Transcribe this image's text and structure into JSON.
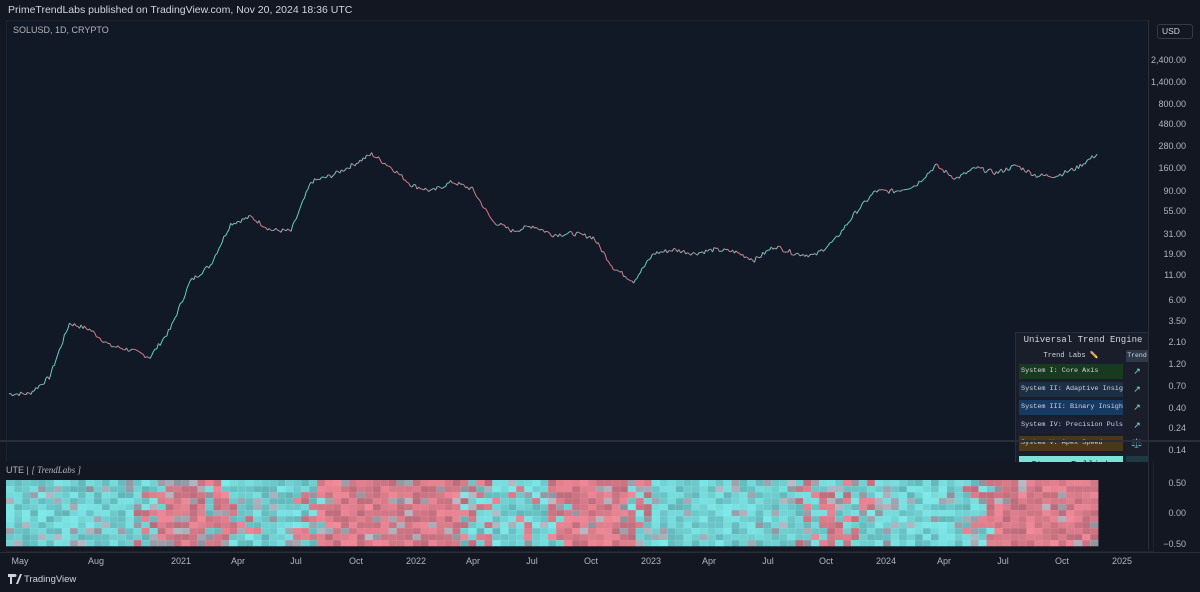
{
  "header": {
    "text": "PrimeTrendLabs published on TradingView.com, Nov 20, 2024 18:36 UTC"
  },
  "symbol": {
    "info": "SOLUSD, 1D, CRYPTO"
  },
  "price_axis": {
    "currency": "USD",
    "ticks": [
      "2,400.00",
      "1,400.00",
      "800.00",
      "480.00",
      "280.00",
      "160.00",
      "90.00",
      "55.00",
      "31.00",
      "19.00",
      "11.00",
      "6.00",
      "3.50",
      "2.10",
      "1.20",
      "0.70",
      "0.40",
      "0.24",
      "0.14"
    ]
  },
  "indicator": {
    "name": "UTE",
    "brand": "[ TrendLabs ]",
    "ticks": [
      "0.50",
      "0.00",
      "−0.50"
    ],
    "colors": {
      "bull": "#7fe9e9",
      "bear": "#f18a99",
      "neutral": "#b7bcc6"
    }
  },
  "time_axis": {
    "ticks": [
      "May",
      "Aug",
      "2021",
      "Apr",
      "Jul",
      "Oct",
      "2022",
      "Apr",
      "Jul",
      "Oct",
      "2023",
      "Apr",
      "Jul",
      "Oct",
      "2024",
      "Apr",
      "Jul",
      "Oct",
      "2025"
    ]
  },
  "footer": {
    "label": "TradingView"
  },
  "ute_table": {
    "title": "Universal Trend Engine",
    "subhead": "Trend Labs ✏️",
    "trend_header": "Trend",
    "systems": [
      {
        "label": "System I: Core Axis",
        "arrow": "↗",
        "color": "#183b1f"
      },
      {
        "label": "System II: Adaptive Insight",
        "arrow": "↗",
        "color": "#1b2f45"
      },
      {
        "label": "System III: Binary Insight",
        "arrow": "↗",
        "color": "#173a63"
      },
      {
        "label": "System IV: Precision Pulse",
        "arrow": "↗",
        "color": "#1b1f33"
      },
      {
        "label": "System V: Apex Speed",
        "arrow": "⚖️",
        "color": "#4a3816"
      }
    ],
    "summary": "Strong Bullish",
    "summary_arrow": "▲"
  },
  "chart_data": {
    "type": "line",
    "title": "SOLUSD, 1D, CRYPTO",
    "scale": "log",
    "ylim": [
      0.14,
      2400
    ],
    "x": [
      "2020-05",
      "2020-06",
      "2020-07",
      "2020-08",
      "2020-09",
      "2020-10",
      "2020-11",
      "2020-12",
      "2021-01",
      "2021-02",
      "2021-03",
      "2021-04",
      "2021-05",
      "2021-06",
      "2021-07",
      "2021-08",
      "2021-09",
      "2021-10",
      "2021-11",
      "2021-12",
      "2022-01",
      "2022-02",
      "2022-03",
      "2022-04",
      "2022-05",
      "2022-06",
      "2022-07",
      "2022-08",
      "2022-09",
      "2022-10",
      "2022-11",
      "2022-12",
      "2023-01",
      "2023-02",
      "2023-03",
      "2023-04",
      "2023-05",
      "2023-06",
      "2023-07",
      "2023-08",
      "2023-09",
      "2023-10",
      "2023-11",
      "2023-12",
      "2024-01",
      "2024-02",
      "2024-03",
      "2024-04",
      "2024-05",
      "2024-06",
      "2024-07",
      "2024-08",
      "2024-09",
      "2024-10",
      "2024-11"
    ],
    "series": [
      {
        "values": [
          0.6,
          0.6,
          0.9,
          3.5,
          3.0,
          2.0,
          1.8,
          1.5,
          3.0,
          10,
          15,
          42,
          50,
          36,
          35,
          120,
          140,
          180,
          240,
          170,
          110,
          95,
          120,
          100,
          45,
          35,
          40,
          32,
          33,
          30,
          14,
          10,
          20,
          22,
          20,
          22,
          21,
          17,
          24,
          20,
          19,
          28,
          55,
          95,
          95,
          110,
          180,
          130,
          170,
          150,
          180,
          140,
          140,
          170,
          240
        ]
      }
    ]
  }
}
